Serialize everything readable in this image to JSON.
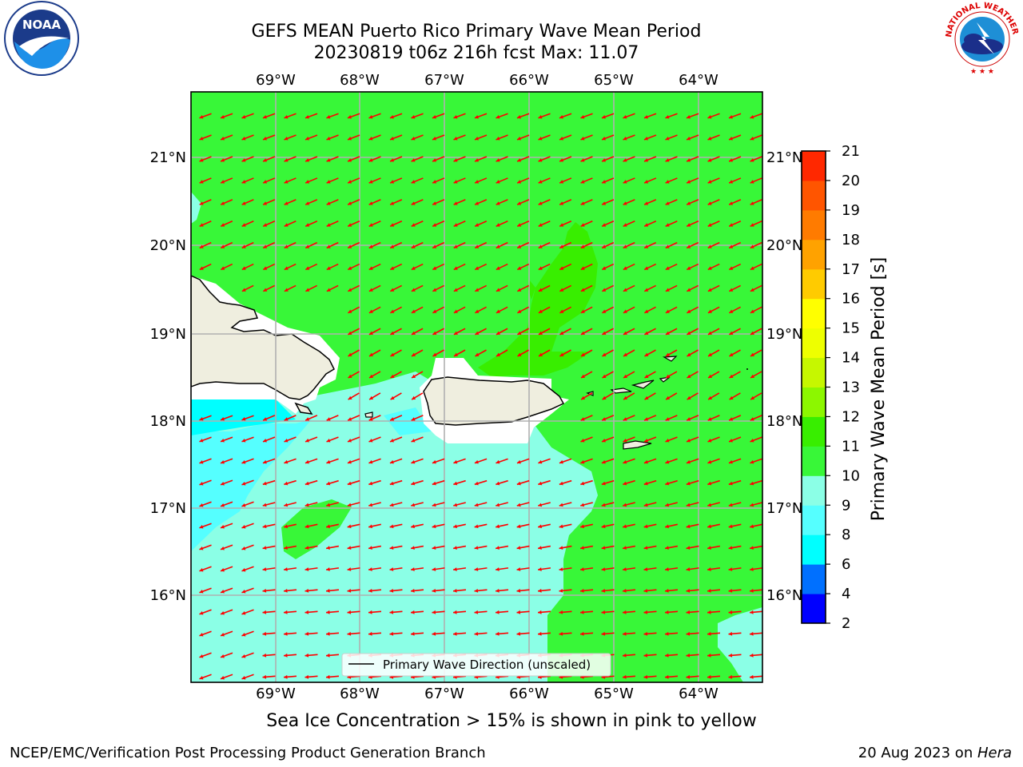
{
  "header": {
    "title_line1": "GEFS MEAN Puerto Rico Primary Wave Mean Period",
    "title_line2": "20230819 t06z 216h fcst   Max: 11.07"
  },
  "map": {
    "lon_labels": [
      "69°W",
      "68°W",
      "67°W",
      "66°W",
      "65°W",
      "64°W"
    ],
    "lat_labels": [
      "21°N",
      "20°N",
      "19°N",
      "18°N",
      "17°N",
      "16°N"
    ],
    "legend_label": "Primary Wave Direction (unscaled)",
    "arrow_color": "#ff0000",
    "land_color": "#efeedf"
  },
  "colorbar": {
    "label": "Primary Wave Mean Period [s]",
    "ticks": [
      "2",
      "4",
      "6",
      "8",
      "9",
      "10",
      "11",
      "12",
      "13",
      "14",
      "15",
      "16",
      "17",
      "18",
      "19",
      "20",
      "21"
    ],
    "colors": [
      "#0000ff",
      "#0070ff",
      "#00ffff",
      "#55ffff",
      "#8bffe6",
      "#38f738",
      "#38ee00",
      "#8cf700",
      "#c6f700",
      "#eeff00",
      "#ffff00",
      "#ffcb00",
      "#ffa200",
      "#ff7b00",
      "#ff5500",
      "#ff2800",
      "#ff0000"
    ]
  },
  "footer": {
    "subtitle": "Sea Ice Concentration > 15% is shown in pink to yellow",
    "left": "NCEP/EMC/Verification Post Processing Product Generation Branch",
    "right_prefix": "20 Aug 2023 on ",
    "right_machine": "Hera"
  },
  "logos": {
    "noaa_text": "NOAA",
    "nws_text": "NATIONAL WEATHER SERVICE"
  }
}
